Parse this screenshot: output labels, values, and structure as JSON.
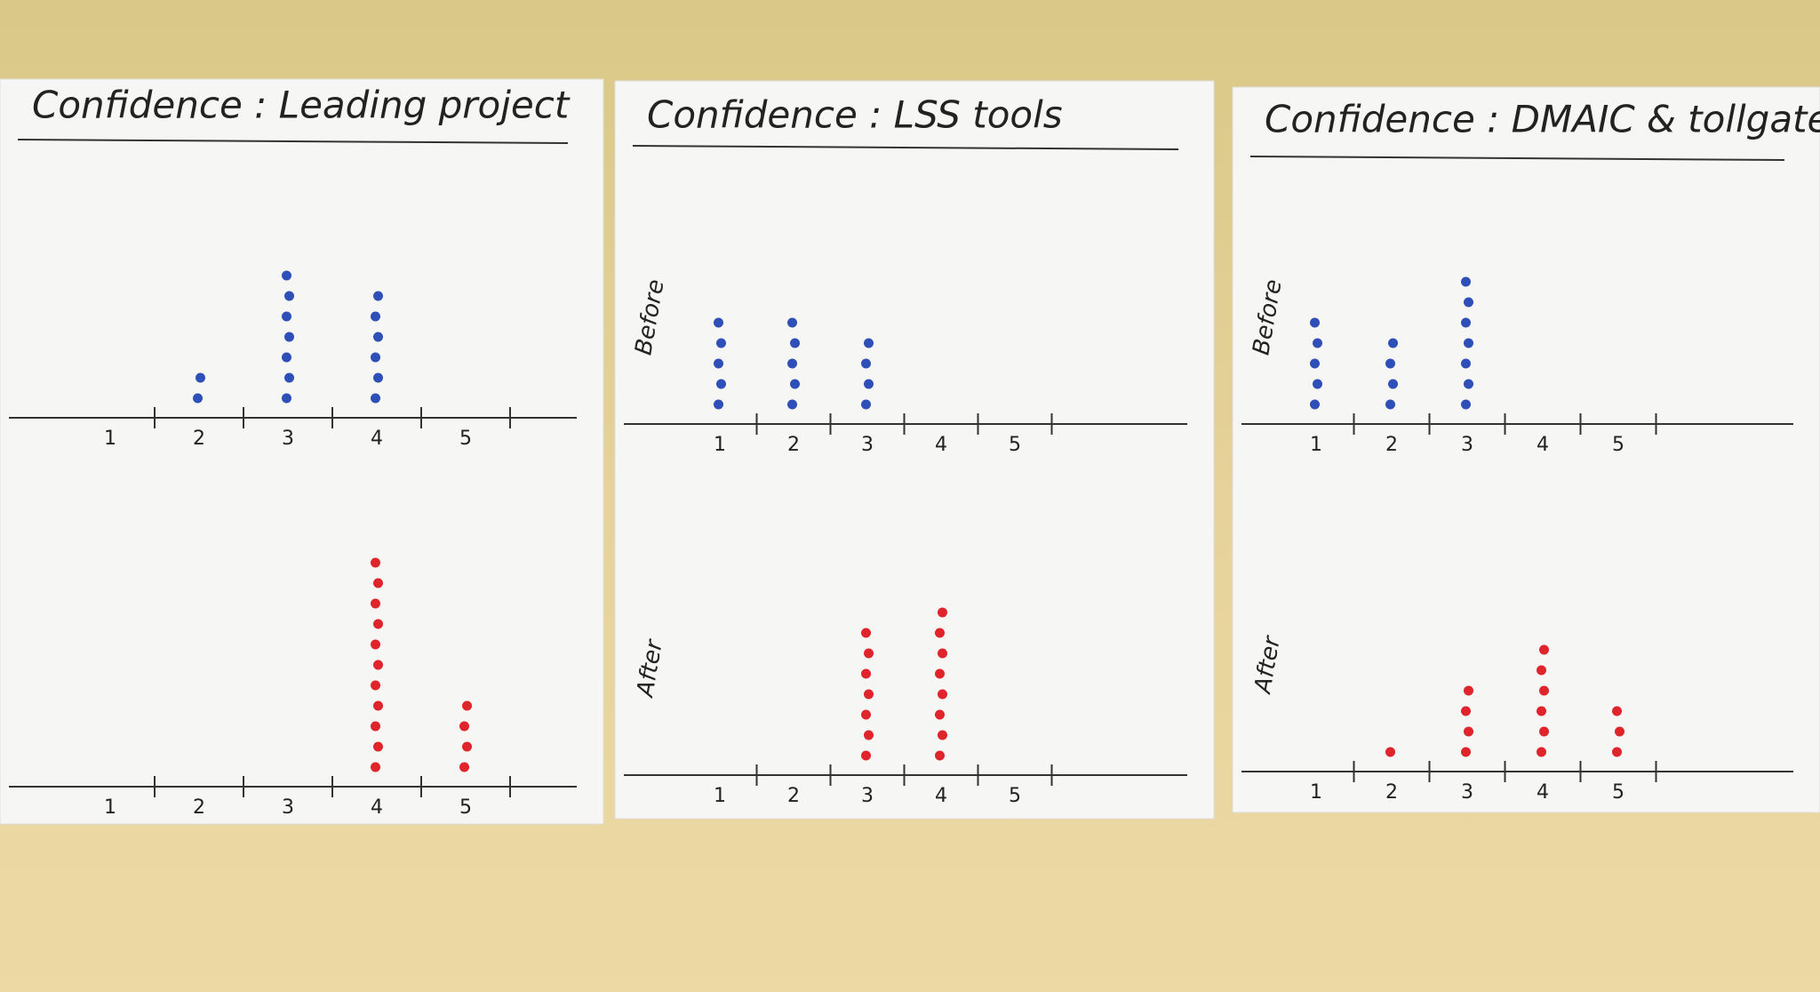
{
  "chart_data": [
    {
      "type": "dot",
      "title": "Confidence : Leading project",
      "categories": [
        "1",
        "2",
        "3",
        "4",
        "5"
      ],
      "series": [
        {
          "color": "#2f4fb8",
          "values": [
            0,
            2,
            7,
            6,
            0
          ]
        },
        {
          "color": "#e0242c",
          "values": [
            0,
            0,
            0,
            11,
            4
          ]
        }
      ]
    },
    {
      "type": "dot",
      "title": "Confidence : LSS tools",
      "categories": [
        "1",
        "2",
        "3",
        "4",
        "5"
      ],
      "series": [
        {
          "name": "Before",
          "color": "#2f4fb8",
          "values": [
            5,
            5,
            4,
            0,
            0
          ]
        },
        {
          "name": "After",
          "color": "#e0242c",
          "values": [
            0,
            0,
            7,
            8,
            0
          ]
        }
      ]
    },
    {
      "type": "dot",
      "title": "Confidence : DMAIC & tollgates",
      "categories": [
        "1",
        "2",
        "3",
        "4",
        "5"
      ],
      "series": [
        {
          "name": "Before",
          "color": "#2f4fb8",
          "values": [
            5,
            4,
            7,
            0,
            0
          ]
        },
        {
          "name": "After",
          "color": "#e0242c",
          "values": [
            0,
            1,
            4,
            6,
            3
          ]
        }
      ]
    }
  ]
}
